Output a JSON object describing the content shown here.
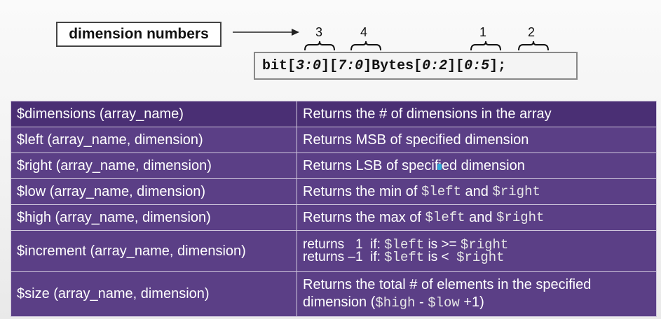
{
  "diagram": {
    "label": "dimension numbers",
    "numbers": [
      "3",
      "4",
      "1",
      "2"
    ],
    "code": {
      "kw": "bit",
      "p1": "[",
      "r1": "3:0",
      "p2": "][",
      "r2": "7:0",
      "p3": "]",
      "name": "Bytes",
      "p4": "[",
      "r3": "0:2",
      "p5": "][",
      "r4": "0:5",
      "p6": "];"
    }
  },
  "table": {
    "rows": [
      {
        "func": "$dimensions (array_name)",
        "desc": "Returns the # of dimensions in the array"
      },
      {
        "func": "$left (array_name, dimension)",
        "desc": "Returns MSB of specified dimension"
      },
      {
        "func": "$right (array_name, dimension)",
        "desc": "Returns LSB of specified dimension"
      },
      {
        "func": "$low (array_name, dimension)",
        "desc_a": "Returns the min of ",
        "desc_m1": "$left",
        "desc_b": " and ",
        "desc_m2": "$right"
      },
      {
        "func": "$high (array_name, dimension)",
        "desc_a": "Returns the max of ",
        "desc_m1": "$left",
        "desc_b": " and ",
        "desc_m2": "$right"
      },
      {
        "func": "$increment (array_name, dimension)",
        "line1": {
          "a": "returns   1  if: ",
          "m1": "$left",
          "b": " is >= ",
          "m2": "$right"
        },
        "line2": {
          "a": "returns –1  if: ",
          "m1": "$left",
          "b": " is <  ",
          "m2": "$right"
        }
      },
      {
        "func": "$size (array_name, dimension)",
        "desc_a": "Returns the total # of elements in the specified",
        "desc_b": "dimension (",
        "desc_m1": "$high",
        "desc_c": " - ",
        "desc_m2": "$low",
        "desc_d": " +1)"
      }
    ]
  }
}
